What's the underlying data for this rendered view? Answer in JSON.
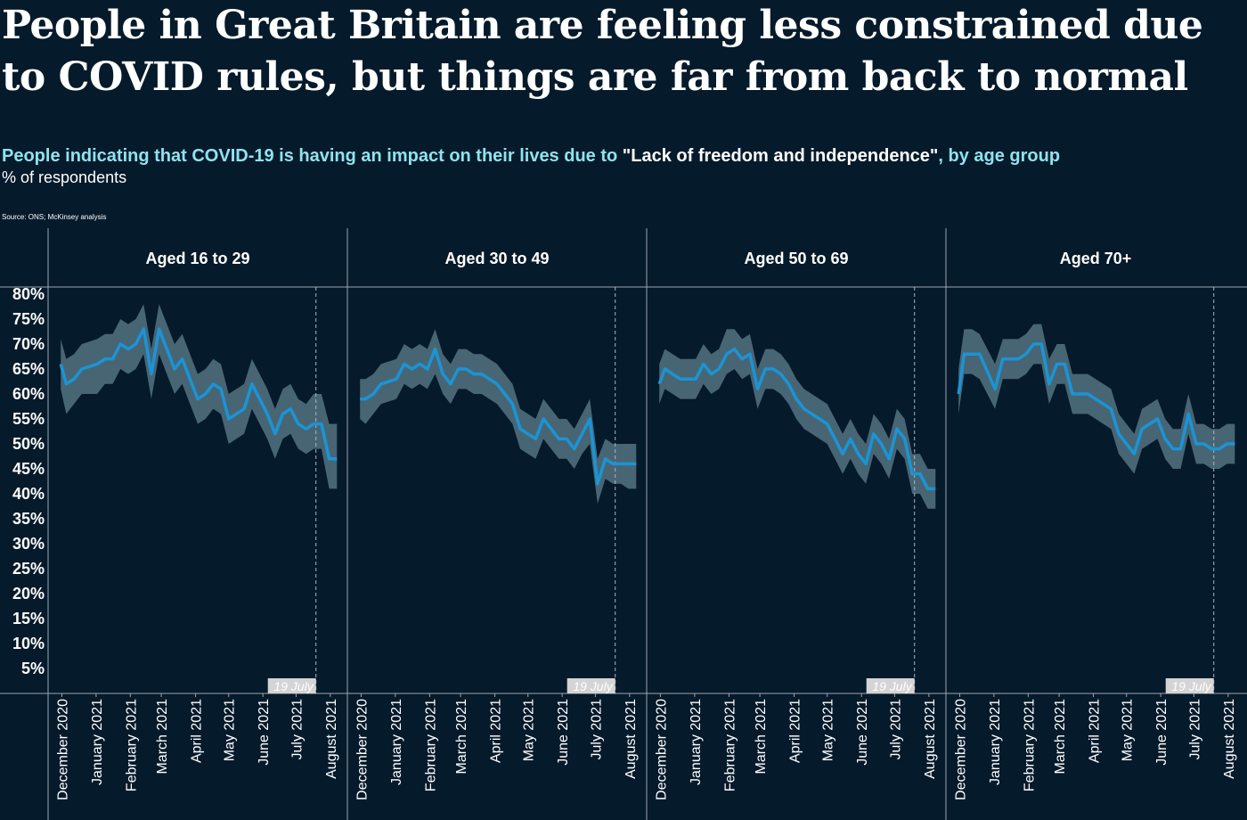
{
  "title": "People in Great Britain are feeling less constrained due to COVID rules, but things are far from back to normal",
  "subtitle": {
    "part1": "People indicating that COVID-19 is having an impact on their lives due to ",
    "quote": "\"Lack of freedom and independence\"",
    "part2": ", by age group"
  },
  "units": "% of respondents",
  "source": "Source:  ONS; McKinsey analysis",
  "colors": {
    "background": "#051a2b",
    "line": "#1b94d6",
    "band": "#5f7f8c",
    "subtitle_accent": "#8fe3ee"
  },
  "chart_data": {
    "type": "line",
    "ylim": [
      0,
      80
    ],
    "y_ticks": [
      "80%",
      "75%",
      "70%",
      "65%",
      "60%",
      "55%",
      "50%",
      "45%",
      "40%",
      "35%",
      "30%",
      "25%",
      "20%",
      "15%",
      "10%",
      "5%"
    ],
    "x_range": [
      "2020-11-25",
      "2021-08-10"
    ],
    "x_ticks": [
      {
        "date": "2020-12-01",
        "label": "December 2020"
      },
      {
        "date": "2021-01-01",
        "label": "January 2021"
      },
      {
        "date": "2021-02-01",
        "label": "February 2021"
      },
      {
        "date": "2021-03-01",
        "label": "March 2021"
      },
      {
        "date": "2021-04-01",
        "label": "April 2021"
      },
      {
        "date": "2021-05-01",
        "label": "May 2021"
      },
      {
        "date": "2021-06-01",
        "label": "June 2021"
      },
      {
        "date": "2021-07-01",
        "label": "July 2021"
      },
      {
        "date": "2021-08-01",
        "label": "August 2021"
      }
    ],
    "annotation": {
      "date": "2021-07-19",
      "label": "19 July"
    },
    "x": [
      "2020-11-30",
      "2020-12-05",
      "2020-12-12",
      "2020-12-19",
      "2021-01-02",
      "2021-01-09",
      "2021-01-16",
      "2021-01-23",
      "2021-01-30",
      "2021-02-06",
      "2021-02-13",
      "2021-02-20",
      "2021-02-27",
      "2021-03-06",
      "2021-03-13",
      "2021-03-20",
      "2021-03-27",
      "2021-04-03",
      "2021-04-10",
      "2021-04-17",
      "2021-04-24",
      "2021-05-01",
      "2021-05-08",
      "2021-05-15",
      "2021-05-22",
      "2021-05-29",
      "2021-06-05",
      "2021-06-12",
      "2021-06-19",
      "2021-06-26",
      "2021-07-03",
      "2021-07-10",
      "2021-07-17",
      "2021-07-24",
      "2021-07-31",
      "2021-08-07"
    ],
    "panels": [
      {
        "title": "Aged 16 to 29",
        "values": [
          66,
          62,
          63,
          65,
          66,
          67,
          67,
          70,
          69,
          70,
          73,
          64,
          73,
          69,
          65,
          67,
          63,
          59,
          60,
          62,
          61,
          55,
          56,
          57,
          62,
          59,
          56,
          52,
          56,
          57,
          54,
          53,
          54,
          54,
          47,
          47
        ],
        "lower": [
          61,
          56,
          58,
          60,
          60,
          62,
          62,
          65,
          64,
          65,
          68,
          59,
          68,
          64,
          60,
          62,
          58,
          54,
          55,
          57,
          56,
          50,
          51,
          52,
          57,
          54,
          51,
          47,
          51,
          52,
          49,
          48,
          49,
          49,
          41,
          41
        ],
        "upper": [
          71,
          67,
          68,
          70,
          71,
          72,
          72,
          75,
          74,
          75,
          78,
          69,
          78,
          74,
          70,
          72,
          68,
          64,
          65,
          67,
          66,
          60,
          61,
          62,
          67,
          64,
          61,
          57,
          61,
          62,
          59,
          58,
          60,
          60,
          54,
          54
        ]
      },
      {
        "title": "Aged 30 to 49",
        "values": [
          59,
          59,
          60,
          62,
          63,
          66,
          65,
          66,
          65,
          69,
          64,
          62,
          65,
          65,
          64,
          64,
          63,
          62,
          60,
          58,
          53,
          52,
          51,
          55,
          53,
          51,
          51,
          49,
          52,
          55,
          42,
          47,
          46,
          46,
          46,
          46
        ],
        "lower": [
          55,
          54,
          56,
          58,
          59,
          62,
          61,
          62,
          61,
          64,
          60,
          58,
          61,
          61,
          60,
          60,
          59,
          58,
          56,
          54,
          49,
          48,
          47,
          51,
          49,
          47,
          47,
          45,
          48,
          50,
          38,
          43,
          42,
          42,
          41,
          41
        ],
        "upper": [
          63,
          63,
          64,
          66,
          67,
          70,
          69,
          70,
          69,
          73,
          68,
          66,
          69,
          69,
          68,
          68,
          67,
          66,
          64,
          62,
          57,
          56,
          55,
          59,
          57,
          55,
          55,
          53,
          56,
          59,
          47,
          51,
          50,
          50,
          50,
          50
        ],
        "dashes": "on"
      },
      {
        "title": "Aged 50 to 69",
        "values": [
          62,
          65,
          64,
          63,
          63,
          66,
          64,
          65,
          68,
          69,
          67,
          68,
          61,
          65,
          65,
          64,
          62,
          59,
          57,
          56,
          55,
          54,
          51,
          48,
          51,
          48,
          46,
          52,
          50,
          47,
          53,
          51,
          44,
          44,
          41,
          41
        ],
        "lower": [
          58,
          61,
          60,
          59,
          59,
          62,
          60,
          61,
          64,
          65,
          63,
          64,
          57,
          61,
          61,
          60,
          58,
          55,
          53,
          52,
          51,
          50,
          47,
          44,
          47,
          44,
          42,
          48,
          46,
          43,
          49,
          47,
          40,
          40,
          37,
          37
        ],
        "upper": [
          66,
          69,
          68,
          67,
          67,
          70,
          68,
          69,
          73,
          73,
          71,
          72,
          65,
          69,
          69,
          68,
          66,
          63,
          61,
          60,
          59,
          58,
          55,
          52,
          55,
          52,
          50,
          56,
          54,
          51,
          57,
          55,
          48,
          48,
          45,
          45
        ]
      },
      {
        "title": "Aged 70+",
        "values": [
          60,
          68,
          68,
          68,
          61,
          67,
          67,
          67,
          68,
          70,
          70,
          62,
          66,
          66,
          60,
          60,
          60,
          59,
          58,
          57,
          52,
          50,
          48,
          53,
          54,
          55,
          51,
          49,
          49,
          56,
          50,
          50,
          49,
          49,
          50,
          50
        ],
        "lower": [
          56,
          64,
          64,
          63,
          57,
          63,
          63,
          63,
          64,
          66,
          66,
          58,
          62,
          62,
          56,
          56,
          56,
          55,
          54,
          53,
          48,
          46,
          44,
          49,
          50,
          51,
          47,
          45,
          45,
          52,
          46,
          46,
          45,
          45,
          46,
          46
        ],
        "upper": [
          65,
          73,
          73,
          72,
          66,
          71,
          71,
          71,
          72,
          74,
          74,
          67,
          70,
          70,
          64,
          64,
          64,
          63,
          62,
          61,
          56,
          54,
          52,
          57,
          58,
          59,
          55,
          53,
          53,
          60,
          54,
          54,
          53,
          53,
          54,
          54
        ]
      }
    ]
  }
}
